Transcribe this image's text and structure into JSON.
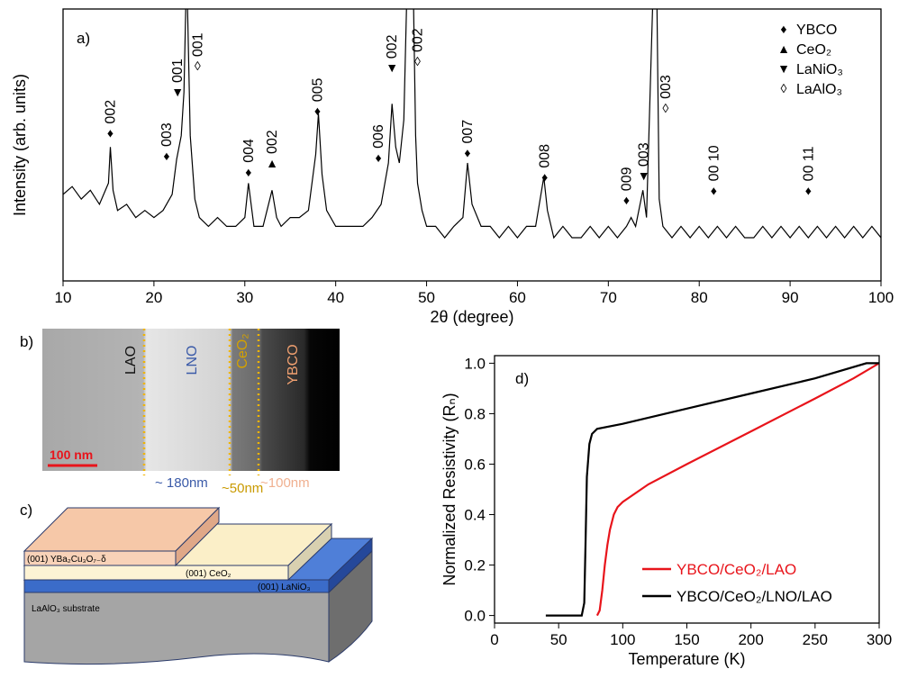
{
  "chart_data": [
    {
      "type": "line",
      "panel_label": "a)",
      "y_scale": "log",
      "x_label": "2θ (degree)",
      "y_label": "Intensity (arb. units)",
      "xlim": [
        10,
        100
      ],
      "ylim": [
        1,
        1000
      ],
      "xticks": [
        10,
        20,
        30,
        40,
        50,
        60,
        70,
        80,
        90,
        100
      ],
      "series": [
        {
          "color": "#000000",
          "x": [
            10,
            11,
            12,
            13,
            14,
            15,
            15.2,
            15.5,
            16,
            17,
            18,
            19,
            20,
            21,
            22,
            22.5,
            23,
            23.3,
            23.6,
            24,
            24.5,
            25,
            26,
            27,
            28,
            29,
            30,
            30.4,
            31,
            32,
            33,
            33.5,
            34,
            35,
            36,
            37,
            37.8,
            38.1,
            38.5,
            39,
            40,
            41,
            42,
            43,
            44,
            45,
            45.8,
            46.2,
            46.6,
            47,
            47.5,
            47.9,
            48.5,
            48.8,
            49,
            49.5,
            50,
            51,
            52,
            53,
            54,
            54.5,
            55,
            56,
            57,
            58,
            59,
            60,
            61,
            62,
            62.9,
            63.3,
            64,
            65,
            66,
            67,
            68,
            69,
            70,
            71,
            72,
            72.5,
            73,
            73.8,
            74.2,
            75,
            75.3,
            75.6,
            76,
            77,
            78,
            79,
            80,
            81,
            82,
            83,
            84,
            85,
            86,
            87,
            88,
            89,
            90,
            91,
            92,
            93,
            94,
            95,
            96,
            97,
            98,
            99,
            100
          ],
          "values": [
            9,
            11,
            8,
            10,
            7,
            12,
            30,
            10,
            6,
            7,
            5,
            6,
            5,
            6,
            9,
            22,
            40,
            120,
            3000,
            40,
            8,
            5,
            4,
            5,
            4,
            4,
            5,
            12,
            4,
            4,
            10,
            5,
            4,
            5,
            5,
            6,
            25,
            70,
            15,
            6,
            4,
            4,
            4,
            4,
            5,
            7,
            20,
            90,
            30,
            20,
            60,
            3000,
            3000,
            40,
            12,
            6,
            4,
            4,
            3,
            4,
            5,
            20,
            7,
            4,
            4,
            3,
            4,
            3,
            4,
            4,
            14,
            6,
            3,
            4,
            3,
            3,
            4,
            3,
            4,
            3,
            4,
            5,
            4,
            10,
            5,
            3000,
            3000,
            8,
            4,
            3,
            4,
            3,
            4,
            3,
            4,
            3,
            4,
            3,
            3,
            4,
            3,
            4,
            3,
            4,
            3,
            4,
            3,
            4,
            3,
            4,
            3,
            4,
            3
          ]
        }
      ],
      "phases": [
        {
          "symbol": "♦",
          "name": "YBCO"
        },
        {
          "symbol": "▲",
          "name": "CeO₂"
        },
        {
          "symbol": "▼",
          "name": "LaNiO₃"
        },
        {
          "symbol": "◊",
          "name": "LaAlO₃"
        }
      ],
      "annotations": [
        {
          "text": "002",
          "symbol": "♦",
          "x": 15.2,
          "y": 43
        },
        {
          "text": "003",
          "symbol": "♦",
          "x": 21.4,
          "y": 24
        },
        {
          "text": "001",
          "symbol": "▼",
          "x": 22.6,
          "y": 122
        },
        {
          "text": "001",
          "symbol": "◊",
          "x": 24.8,
          "y": 236
        },
        {
          "text": "004",
          "symbol": "♦",
          "x": 30.4,
          "y": 16
        },
        {
          "text": "002",
          "symbol": "▲",
          "x": 33.0,
          "y": 20
        },
        {
          "text": "005",
          "symbol": "♦",
          "x": 38.0,
          "y": 75
        },
        {
          "text": "006",
          "symbol": "♦",
          "x": 44.7,
          "y": 23
        },
        {
          "text": "002",
          "symbol": "▼",
          "x": 46.2,
          "y": 225
        },
        {
          "text": "002",
          "symbol": "◊",
          "x": 49.0,
          "y": 265
        },
        {
          "text": "007",
          "symbol": "♦",
          "x": 54.5,
          "y": 26
        },
        {
          "text": "008",
          "symbol": "♦",
          "x": 63.0,
          "y": 14
        },
        {
          "text": "009",
          "symbol": "♦",
          "x": 72.0,
          "y": 7.8
        },
        {
          "text": "003",
          "symbol": "▼",
          "x": 73.9,
          "y": 14.5
        },
        {
          "text": "003",
          "symbol": "◊",
          "x": 76.3,
          "y": 81
        },
        {
          "text": "00 10",
          "symbol": "♦",
          "x": 81.6,
          "y": 10
        },
        {
          "text": "00 11",
          "symbol": "♦",
          "x": 92.0,
          "y": 10
        }
      ]
    },
    {
      "type": "line",
      "panel_label": "d)",
      "x_label": "Temperature (K)",
      "y_label": "Normalized Resistivity (Rₙ)",
      "xlim": [
        0,
        300
      ],
      "ylim": [
        -0.03,
        1.03
      ],
      "xticks": [
        0,
        50,
        100,
        150,
        200,
        250,
        300
      ],
      "yticks": [
        {
          "value": 0,
          "label": "0.0"
        },
        {
          "value": 0.2,
          "label": "0.2"
        },
        {
          "value": 0.4,
          "label": "0.4"
        },
        {
          "value": 0.6,
          "label": "0.6"
        },
        {
          "value": 0.8,
          "label": "0.8"
        },
        {
          "value": 1,
          "label": "1.0"
        }
      ],
      "series": [
        {
          "name": "YBCO/CeO₂/LAO",
          "color": "#e8141b",
          "x": [
            80,
            82,
            84,
            86,
            88,
            90,
            93,
            96,
            100,
            120,
            150,
            200,
            250,
            280,
            300
          ],
          "values": [
            0,
            0.02,
            0.1,
            0.2,
            0.28,
            0.34,
            0.4,
            0.43,
            0.45,
            0.52,
            0.6,
            0.73,
            0.86,
            0.94,
            1.0
          ]
        },
        {
          "name": "YBCO/CeO₂/LNO/LAO",
          "color": "#000000",
          "x": [
            40,
            60,
            68,
            70,
            71,
            72,
            74,
            76,
            80,
            100,
            150,
            200,
            250,
            290,
            300
          ],
          "values": [
            0,
            0,
            0,
            0.05,
            0.3,
            0.55,
            0.68,
            0.72,
            0.74,
            0.76,
            0.82,
            0.88,
            0.94,
            1.0,
            1.0
          ]
        }
      ]
    }
  ],
  "panel_b": {
    "label": "b)",
    "layers": [
      "LAO",
      "LNO",
      "CeO₂",
      "YBCO"
    ],
    "scale_bar": "100 nm",
    "thicknesses": [
      "~ 180nm",
      "~50nm",
      "~100nm"
    ]
  },
  "panel_c": {
    "label": "c)",
    "layers": [
      "(001) YBa₂Cu₃O₇₋δ",
      "(001) CeO₂",
      "(001) LaNiO₃",
      "LaAlO₃ substrate"
    ]
  }
}
